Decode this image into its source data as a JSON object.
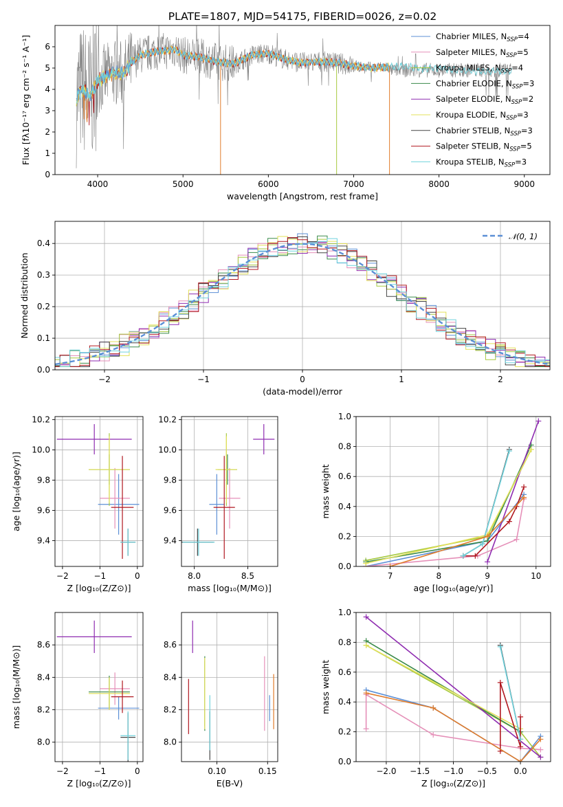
{
  "title": "PLATE=1807, MJD=54175, FIBERID=0026, z=0.02",
  "colors": {
    "Chabrier MILES": "#5b8fd6",
    "Salpeter MILES": "#e58fb8",
    "Kroupa MILES": "#a6c93f",
    "Chabrier ELODIE": "#3a8a4a",
    "Salpeter ELODIE": "#8e2bb0",
    "Kroupa ELODIE": "#e3e05a",
    "Chabrier STELIB": "#444444",
    "Salpeter STELIB": "#b0171f",
    "Kroupa STELIB": "#6fd2dc",
    "data": "#7f7f7f",
    "orange": "#e07b2a"
  },
  "chart_data": [
    {
      "id": "spectrum",
      "type": "line",
      "xlabel": "wavelength [Angstrom, rest frame]",
      "ylabel": "Flux [fλ10⁻¹⁷ erg cm⁻² s⁻¹ A⁻¹]",
      "xlim": [
        3500,
        9300
      ],
      "ylim": [
        0,
        7
      ],
      "xticks": [
        4000,
        5000,
        6000,
        7000,
        8000,
        9000
      ],
      "yticks": [
        0,
        1,
        2,
        3,
        4,
        5,
        6
      ],
      "legend_position": "top-right",
      "legend": [
        {
          "name": "Chabrier MILES",
          "n": "4"
        },
        {
          "name": "Salpeter MILES",
          "n": "5"
        },
        {
          "name": "Kroupa MILES",
          "n": "4"
        },
        {
          "name": "Chabrier ELODIE",
          "n": "3"
        },
        {
          "name": "Salpeter ELODIE",
          "n": "2"
        },
        {
          "name": "Kroupa ELODIE",
          "n": "3"
        },
        {
          "name": "Chabrier STELIB",
          "n": "3"
        },
        {
          "name": "Salpeter STELIB",
          "n": "5"
        },
        {
          "name": "Kroupa STELIB",
          "n": "3"
        }
      ],
      "model_x": [
        3750,
        3800,
        3850,
        3900,
        4000,
        4100,
        4200,
        4300,
        4400,
        4500,
        4600,
        4700,
        4800,
        4900,
        5000,
        5200,
        5400,
        5600,
        5800,
        6000,
        6200,
        6400,
        6600,
        6800,
        7000,
        7200,
        7400,
        7600,
        7800,
        8000,
        8200,
        8400
      ],
      "model_y": [
        3.5,
        3.9,
        4.0,
        3.6,
        4.4,
        4.6,
        4.8,
        4.7,
        5.3,
        5.6,
        5.7,
        5.8,
        5.8,
        5.9,
        5.6,
        5.5,
        5.3,
        5.2,
        5.6,
        5.7,
        5.4,
        5.25,
        5.3,
        5.25,
        5.1,
        5.0,
        5.05,
        5.1,
        4.95,
        5.0,
        4.9,
        4.85
      ],
      "data_range_x": [
        3750,
        8850
      ]
    },
    {
      "id": "residuals",
      "type": "histogram",
      "xlabel": "(data-model)/error",
      "ylabel": "Normed distribution",
      "xlim": [
        -2.5,
        2.5
      ],
      "ylim": [
        0,
        0.47
      ],
      "xticks": [
        -2,
        -1,
        0,
        1,
        2
      ],
      "yticks": [
        0.0,
        0.1,
        0.2,
        0.3,
        0.4
      ],
      "legend": "𝒩(0, 1)",
      "legend_position": "top-right",
      "bin_width": 0.1
    },
    {
      "id": "age_vs_Z",
      "type": "errorbar",
      "xlabel": "Z [log₁₀(Z/Z⊙)]",
      "ylabel": "age  [log₁₀(age/yr)]",
      "xlim": [
        -2.2,
        0.15
      ],
      "ylim": [
        9.23,
        10.22
      ],
      "xticks": [
        -2,
        -1,
        0
      ],
      "yticks": [
        9.4,
        9.6,
        9.8,
        10.0,
        10.2
      ],
      "points": [
        {
          "s": "Chabrier MILES",
          "x": -0.5,
          "xerr": 0.55,
          "y": 9.64,
          "yerr": 0.2
        },
        {
          "s": "Salpeter MILES",
          "x": -0.6,
          "xerr": 0.4,
          "y": 9.68,
          "yerr": 0.2
        },
        {
          "s": "Kroupa MILES",
          "x": -0.75,
          "xerr": 0.55,
          "y": 9.87,
          "yerr": 0.24
        },
        {
          "s": "Chabrier ELODIE",
          "x": -0.75,
          "xerr": 0.55,
          "y": 9.87,
          "yerr": 0.1
        },
        {
          "s": "Salpeter ELODIE",
          "x": -1.15,
          "xerr": 1.0,
          "y": 10.07,
          "yerr": 0.1
        },
        {
          "s": "Kroupa ELODIE",
          "x": -0.75,
          "xerr": 0.55,
          "y": 9.87,
          "yerr": 0.22
        },
        {
          "s": "Chabrier STELIB",
          "x": -0.25,
          "xerr": 0.2,
          "y": 9.39,
          "yerr": 0.09
        },
        {
          "s": "Salpeter STELIB",
          "x": -0.4,
          "xerr": 0.3,
          "y": 9.62,
          "yerr": 0.34
        },
        {
          "s": "Kroupa STELIB",
          "x": -0.25,
          "xerr": 0.2,
          "y": 9.39,
          "yerr": 0.09
        }
      ]
    },
    {
      "id": "age_vs_mass",
      "type": "errorbar",
      "xlabel": "mass [log₁₀(M/M⊙)]",
      "ylabel": "",
      "xlim": [
        7.88,
        8.78
      ],
      "ylim": [
        9.23,
        10.22
      ],
      "xticks": [
        8.0,
        8.5
      ],
      "yticks": [
        9.4,
        9.6,
        9.8,
        10.0,
        10.2
      ],
      "points": [
        {
          "s": "Chabrier MILES",
          "x": 8.21,
          "xerr": 0.07,
          "y": 9.64,
          "yerr": 0.2
        },
        {
          "s": "Salpeter MILES",
          "x": 8.33,
          "xerr": 0.1,
          "y": 9.68,
          "yerr": 0.2
        },
        {
          "s": "Kroupa MILES",
          "x": 8.3,
          "xerr": 0.1,
          "y": 9.87,
          "yerr": 0.24
        },
        {
          "s": "Chabrier ELODIE",
          "x": 8.31,
          "xerr": 0.09,
          "y": 9.87,
          "yerr": 0.1
        },
        {
          "s": "Salpeter ELODIE",
          "x": 8.65,
          "xerr": 0.1,
          "y": 10.07,
          "yerr": 0.1
        },
        {
          "s": "Kroupa ELODIE",
          "x": 8.3,
          "xerr": 0.1,
          "y": 9.87,
          "yerr": 0.22
        },
        {
          "s": "Chabrier STELIB",
          "x": 8.03,
          "xerr": 0.15,
          "y": 9.39,
          "yerr": 0.09
        },
        {
          "s": "Salpeter STELIB",
          "x": 8.28,
          "xerr": 0.1,
          "y": 9.62,
          "yerr": 0.34
        },
        {
          "s": "Kroupa STELIB",
          "x": 8.04,
          "xerr": 0.15,
          "y": 9.39,
          "yerr": 0.09
        }
      ]
    },
    {
      "id": "weight_vs_age",
      "type": "line",
      "xlabel": "age  [log₁₀(age/yr)]",
      "ylabel": "mass weight",
      "xlim": [
        6.3,
        10.3
      ],
      "ylim": [
        0,
        1
      ],
      "xticks": [
        7,
        8,
        9,
        10
      ],
      "yticks": [
        0.0,
        0.2,
        0.4,
        0.6,
        0.8,
        1.0
      ],
      "series": [
        {
          "s": "Chabrier MILES",
          "x": [
            6.5,
            9.0,
            9.75
          ],
          "y": [
            0.0,
            0.17,
            0.48
          ]
        },
        {
          "s": "Salpeter MILES",
          "x": [
            6.5,
            8.8,
            9.6,
            9.75
          ],
          "y": [
            0.0,
            0.07,
            0.18,
            0.45
          ]
        },
        {
          "s": "Kroupa MILES",
          "x": [
            6.5,
            9.0,
            9.9
          ],
          "y": [
            0.04,
            0.2,
            0.78
          ]
        },
        {
          "s": "Chabrier ELODIE",
          "x": [
            6.5,
            9.0,
            9.9
          ],
          "y": [
            0.03,
            0.17,
            0.81
          ]
        },
        {
          "s": "Salpeter ELODIE",
          "x": [
            9.0,
            10.05
          ],
          "y": [
            0.03,
            0.97
          ]
        },
        {
          "s": "Kroupa ELODIE",
          "x": [
            6.5,
            9.0,
            9.9
          ],
          "y": [
            0.02,
            0.21,
            0.78
          ]
        },
        {
          "s": "Chabrier STELIB",
          "x": [
            8.5,
            8.9,
            9.45
          ],
          "y": [
            0.07,
            0.15,
            0.78
          ]
        },
        {
          "s": "Salpeter STELIB",
          "x": [
            8.5,
            8.75,
            9.45,
            9.6,
            9.75
          ],
          "y": [
            0.07,
            0.07,
            0.3,
            0.4,
            0.53
          ]
        },
        {
          "s": "Kroupa STELIB",
          "x": [
            8.5,
            8.9,
            9.45
          ],
          "y": [
            0.07,
            0.15,
            0.77
          ]
        },
        {
          "s": "orange",
          "x": [
            7.0,
            9.0,
            9.75
          ],
          "y": [
            0.0,
            0.2,
            0.46
          ]
        }
      ]
    },
    {
      "id": "mass_vs_Z",
      "type": "errorbar",
      "xlabel": "Z [log₁₀(Z/Z⊙)]",
      "ylabel": "mass [log₁₀(M/M⊙)]",
      "xlim": [
        -2.2,
        0.15
      ],
      "ylim": [
        7.88,
        8.8
      ],
      "xticks": [
        -2,
        -1,
        0
      ],
      "yticks": [
        8.0,
        8.2,
        8.4,
        8.6
      ],
      "points": [
        {
          "s": "Chabrier MILES",
          "x": -0.5,
          "xerr": 0.55,
          "y": 8.21,
          "yerr": 0.07
        },
        {
          "s": "Salpeter MILES",
          "x": -0.6,
          "xerr": 0.4,
          "y": 8.33,
          "yerr": 0.1
        },
        {
          "s": "Kroupa MILES",
          "x": -0.75,
          "xerr": 0.55,
          "y": 8.3,
          "yerr": 0.1
        },
        {
          "s": "Chabrier ELODIE",
          "x": -0.75,
          "xerr": 0.55,
          "y": 8.31,
          "yerr": 0.1
        },
        {
          "s": "Salpeter ELODIE",
          "x": -1.15,
          "xerr": 1.0,
          "y": 8.65,
          "yerr": 0.1
        },
        {
          "s": "Kroupa ELODIE",
          "x": -0.75,
          "xerr": 0.55,
          "y": 8.3,
          "yerr": 0.1
        },
        {
          "s": "Chabrier STELIB",
          "x": -0.25,
          "xerr": 0.2,
          "y": 8.03,
          "yerr": 0.15
        },
        {
          "s": "Salpeter STELIB",
          "x": -0.4,
          "xerr": 0.3,
          "y": 8.28,
          "yerr": 0.1
        },
        {
          "s": "Kroupa STELIB",
          "x": -0.25,
          "xerr": 0.2,
          "y": 8.04,
          "yerr": 0.15
        }
      ]
    },
    {
      "id": "mass_vs_ebv",
      "type": "errorbar",
      "xlabel": "E(B-V)",
      "ylabel": "",
      "xlim": [
        0.065,
        0.16
      ],
      "ylim": [
        7.88,
        8.8
      ],
      "xticks": [
        0.1,
        0.15
      ],
      "yticks": [
        8.0,
        8.2,
        8.4,
        8.6
      ],
      "points": [
        {
          "s": "Chabrier MILES",
          "x": 0.152,
          "y": 8.21,
          "yerr": 0.08
        },
        {
          "s": "Salpeter MILES",
          "x": 0.147,
          "y": 8.3,
          "yerr": 0.23
        },
        {
          "s": "Kroupa MILES",
          "x": 0.088,
          "y": 8.3,
          "yerr": 0.2
        },
        {
          "s": "Chabrier ELODIE",
          "x": 0.088,
          "y": 8.3,
          "yerr": 0.23
        },
        {
          "s": "Salpeter ELODIE",
          "x": 0.076,
          "y": 8.65,
          "yerr": 0.1
        },
        {
          "s": "Kroupa ELODIE",
          "x": 0.088,
          "y": 8.3,
          "yerr": 0.22
        },
        {
          "s": "Chabrier STELIB",
          "x": 0.093,
          "y": 8.04,
          "yerr": 0.15
        },
        {
          "s": "Salpeter STELIB",
          "x": 0.072,
          "y": 8.22,
          "yerr": 0.17
        },
        {
          "s": "Kroupa STELIB",
          "x": 0.093,
          "y": 8.12,
          "yerr": 0.17
        },
        {
          "s": "orange",
          "x": 0.156,
          "y": 8.25,
          "yerr": 0.17
        }
      ]
    },
    {
      "id": "weight_vs_Z",
      "type": "line",
      "xlabel": "Z [log₁₀(Z/Z⊙)]",
      "ylabel": "mass weight",
      "xlim": [
        -2.45,
        0.45
      ],
      "ylim": [
        0,
        1
      ],
      "xticks": [
        -2.0,
        -1.5,
        -1.0,
        -0.5,
        0.0
      ],
      "yticks": [
        0.0,
        0.2,
        0.4,
        0.6,
        0.8,
        1.0
      ],
      "series": [
        {
          "s": "Chabrier MILES",
          "x": [
            -2.3,
            -1.3,
            0.0,
            0.3
          ],
          "y": [
            0.48,
            0.36,
            0.0,
            0.17
          ]
        },
        {
          "s": "Salpeter MILES",
          "x": [
            -2.3,
            -2.3,
            -1.3,
            0.0,
            0.3
          ],
          "y": [
            0.22,
            0.45,
            0.18,
            0.09,
            0.08
          ]
        },
        {
          "s": "Kroupa MILES",
          "x": [
            -2.3,
            0.0,
            0.3
          ],
          "y": [
            0.78,
            0.2,
            0.03
          ]
        },
        {
          "s": "Chabrier ELODIE",
          "x": [
            -2.3,
            0.0
          ],
          "y": [
            0.81,
            0.2
          ]
        },
        {
          "s": "Salpeter ELODIE",
          "x": [
            -2.3,
            0.3
          ],
          "y": [
            0.97,
            0.03
          ]
        },
        {
          "s": "Kroupa ELODIE",
          "x": [
            -2.3,
            0.0
          ],
          "y": [
            0.78,
            0.22
          ]
        },
        {
          "s": "Chabrier STELIB",
          "x": [
            -0.3,
            0.0
          ],
          "y": [
            0.78,
            0.15
          ]
        },
        {
          "s": "Salpeter STELIB",
          "x": [
            -0.3,
            -0.3,
            0.0,
            0.0
          ],
          "y": [
            0.07,
            0.53,
            0.1,
            0.3
          ]
        },
        {
          "s": "Kroupa STELIB",
          "x": [
            -0.3,
            0.0
          ],
          "y": [
            0.77,
            0.15
          ]
        },
        {
          "s": "orange",
          "x": [
            -2.3,
            -1.3,
            0.0,
            0.3
          ],
          "y": [
            0.46,
            0.36,
            0.0,
            0.15
          ]
        }
      ]
    }
  ]
}
